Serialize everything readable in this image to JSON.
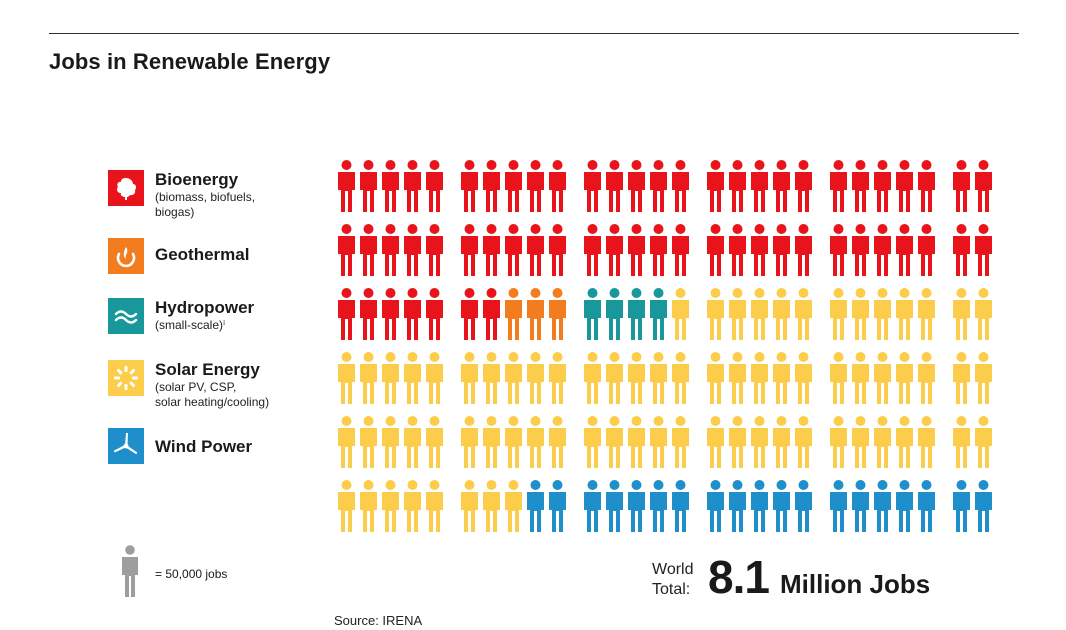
{
  "title": "Jobs in Renewable Energy",
  "legend": [
    {
      "label": "Bioenergy",
      "sub": [
        "(biomass, biofuels,",
        "biogas)"
      ],
      "color": "#e8131b",
      "icon": "leaf-icon"
    },
    {
      "label": "Geothermal",
      "sub": [],
      "color": "#f37c1f",
      "icon": "geothermal-icon"
    },
    {
      "label": "Hydropower",
      "sub": [
        "(small-scale)ⁱ"
      ],
      "color": "#18989a",
      "icon": "waves-icon"
    },
    {
      "label": "Solar Energy",
      "sub": [
        "(solar PV, CSP,",
        "solar heating/cooling)"
      ],
      "color": "#fccd4b",
      "icon": "sun-icon"
    },
    {
      "label": "Wind Power",
      "sub": [],
      "color": "#1e8fca",
      "icon": "wind-turbine-icon"
    }
  ],
  "key": {
    "text": "= 50,000 jobs",
    "icon": "person-icon",
    "color": "#9e9e9e"
  },
  "total": {
    "label_line1": "World",
    "label_line2": "Total:",
    "value": "8.1",
    "unit": "Million Jobs"
  },
  "source": "Source: IRENA",
  "chart_data": {
    "type": "pictogram",
    "unit_jobs": 50000,
    "categories": [
      "Bioenergy",
      "Geothermal",
      "Hydropower",
      "Solar Energy",
      "Wind Power"
    ],
    "values": [
      61,
      3,
      4,
      75,
      19
    ],
    "colors": [
      "#e8131b",
      "#f37c1f",
      "#18989a",
      "#fccd4b",
      "#1e8fca"
    ],
    "total_jobs_millions": 8.1
  }
}
